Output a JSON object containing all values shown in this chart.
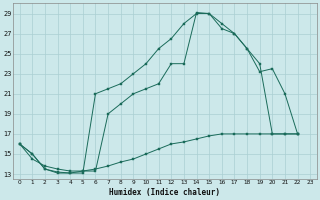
{
  "bg_color": "#cce8ea",
  "grid_color": "#aacfd2",
  "line_color": "#1a6b5a",
  "xlabel": "Humidex (Indice chaleur)",
  "xlim": [
    -0.5,
    23.5
  ],
  "ylim": [
    12.5,
    30
  ],
  "yticks": [
    13,
    15,
    17,
    19,
    21,
    23,
    25,
    27,
    29
  ],
  "xticks": [
    0,
    1,
    2,
    3,
    4,
    5,
    6,
    7,
    8,
    9,
    10,
    11,
    12,
    13,
    14,
    15,
    16,
    17,
    18,
    19,
    20,
    21,
    22,
    23
  ],
  "curve1_x": [
    0,
    1,
    2,
    3,
    4,
    5,
    6,
    7,
    8,
    9,
    10,
    11,
    12,
    13,
    14,
    15,
    16,
    17,
    18,
    19,
    20,
    21,
    22
  ],
  "curve1_y": [
    16,
    15,
    13.5,
    13.2,
    13.1,
    13.1,
    21,
    21.5,
    22,
    23,
    24,
    25.5,
    26.5,
    28,
    29,
    29,
    27.5,
    27,
    25.5,
    24,
    17,
    17,
    17
  ],
  "curve2_x": [
    0,
    1,
    2,
    3,
    4,
    5,
    6,
    7,
    8,
    9,
    10,
    11,
    12,
    13,
    14,
    15,
    16,
    17,
    18,
    19,
    20,
    21,
    22
  ],
  "curve2_y": [
    16,
    15,
    13.5,
    13.1,
    13.1,
    13.3,
    13.3,
    19,
    20,
    21,
    21.5,
    22,
    24,
    24,
    29.1,
    29,
    28,
    27,
    25.5,
    23.2,
    23.5,
    21,
    17
  ],
  "curve3_x": [
    0,
    1,
    2,
    3,
    4,
    5,
    6,
    7,
    8,
    9,
    10,
    11,
    12,
    13,
    14,
    15,
    16,
    17,
    18,
    19,
    20,
    21,
    22
  ],
  "curve3_y": [
    16,
    14.5,
    13.8,
    13.5,
    13.3,
    13.3,
    13.5,
    13.8,
    14.2,
    14.5,
    15,
    15.5,
    16,
    16.2,
    16.5,
    16.8,
    17,
    17,
    17,
    17,
    17,
    17,
    17
  ]
}
